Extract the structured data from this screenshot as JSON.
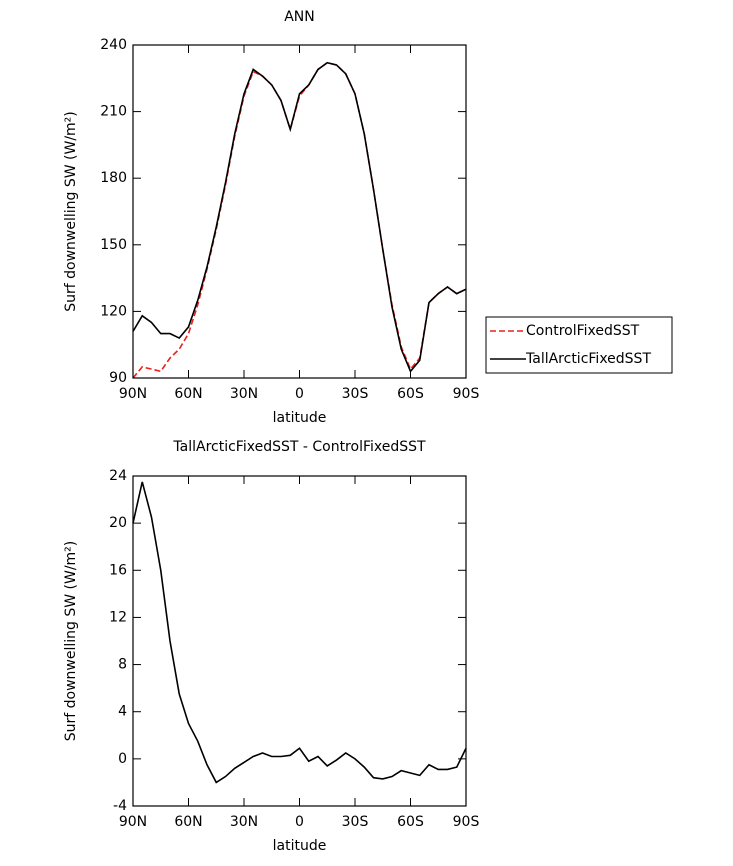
{
  "chart_data": [
    {
      "type": "line",
      "title": "ANN",
      "x_label": "latitude",
      "y_label": "Surf downwelling SW (W/m²)",
      "x": [
        90,
        85,
        80,
        75,
        70,
        65,
        60,
        55,
        50,
        45,
        40,
        35,
        30,
        25,
        20,
        15,
        10,
        5,
        0,
        -5,
        -10,
        -15,
        -20,
        -25,
        -30,
        -35,
        -40,
        -45,
        -50,
        -55,
        -60,
        -65,
        -70,
        -75,
        -80,
        -85,
        -90
      ],
      "xlim": [
        90,
        -90
      ],
      "xticks": [
        {
          "value": 90,
          "label": "90N"
        },
        {
          "value": 60,
          "label": "60N"
        },
        {
          "value": 30,
          "label": "30N"
        },
        0,
        {
          "value": -30,
          "label": "30S"
        },
        {
          "value": -60,
          "label": "60S"
        },
        {
          "value": -90,
          "label": "90S"
        }
      ],
      "ylim": [
        90,
        240
      ],
      "yticks": [
        90,
        120,
        150,
        180,
        210,
        240
      ],
      "legend": "outside right",
      "series": [
        {
          "name": "ControlFixedSST",
          "color": "#e8201d",
          "line_style": "dashed",
          "values": [
            90,
            95,
            94,
            93,
            99,
            103,
            110,
            123,
            139,
            157,
            177,
            199,
            217,
            228,
            226,
            222,
            215,
            202,
            217,
            222,
            229,
            232,
            231,
            227,
            218,
            200,
            175,
            148,
            123,
            104,
            94,
            99,
            124,
            128,
            131,
            128,
            130
          ]
        },
        {
          "name": "TallArcticFixedSST",
          "color": "#000000",
          "line_style": "solid",
          "values": [
            111,
            118,
            115,
            110,
            110,
            108,
            113,
            125,
            140,
            158,
            178,
            200,
            218,
            229,
            226,
            222,
            215,
            202,
            218,
            222,
            229,
            232,
            231,
            227,
            218,
            200,
            175,
            148,
            122,
            103,
            93,
            98,
            124,
            128,
            131,
            128,
            130
          ]
        }
      ]
    },
    {
      "type": "line",
      "title": "TallArcticFixedSST - ControlFixedSST",
      "x_label": "latitude",
      "y_label": "Surf downwelling SW (W/m²)",
      "x": [
        90,
        85,
        80,
        75,
        70,
        65,
        60,
        55,
        50,
        45,
        40,
        35,
        30,
        25,
        20,
        15,
        10,
        5,
        0,
        -5,
        -10,
        -15,
        -20,
        -25,
        -30,
        -35,
        -40,
        -45,
        -50,
        -55,
        -60,
        -65,
        -70,
        -75,
        -80,
        -85,
        -90
      ],
      "xlim": [
        90,
        -90
      ],
      "xticks": [
        {
          "value": 90,
          "label": "90N"
        },
        {
          "value": 60,
          "label": "60N"
        },
        {
          "value": 30,
          "label": "30N"
        },
        0,
        {
          "value": -30,
          "label": "30S"
        },
        {
          "value": -60,
          "label": "60S"
        },
        {
          "value": -90,
          "label": "90S"
        }
      ],
      "ylim": [
        -4,
        24
      ],
      "yticks": [
        -4,
        0,
        4,
        8,
        12,
        16,
        20,
        24
      ],
      "series": [
        {
          "color": "#000000",
          "line_style": "solid",
          "values": [
            20,
            23.5,
            20.5,
            16,
            10,
            5.5,
            3,
            1.5,
            -0.5,
            -2,
            -1.5,
            -0.8,
            -0.3,
            0.2,
            0.5,
            0.2,
            0.2,
            0.3,
            0.9,
            -0.2,
            0.2,
            -0.6,
            -0.1,
            0.5,
            0,
            -0.7,
            -1.6,
            -1.7,
            -1.5,
            -1,
            -1.2,
            -1.4,
            -0.5,
            -0.9,
            -0.9,
            -0.7,
            0.9
          ]
        }
      ]
    }
  ]
}
